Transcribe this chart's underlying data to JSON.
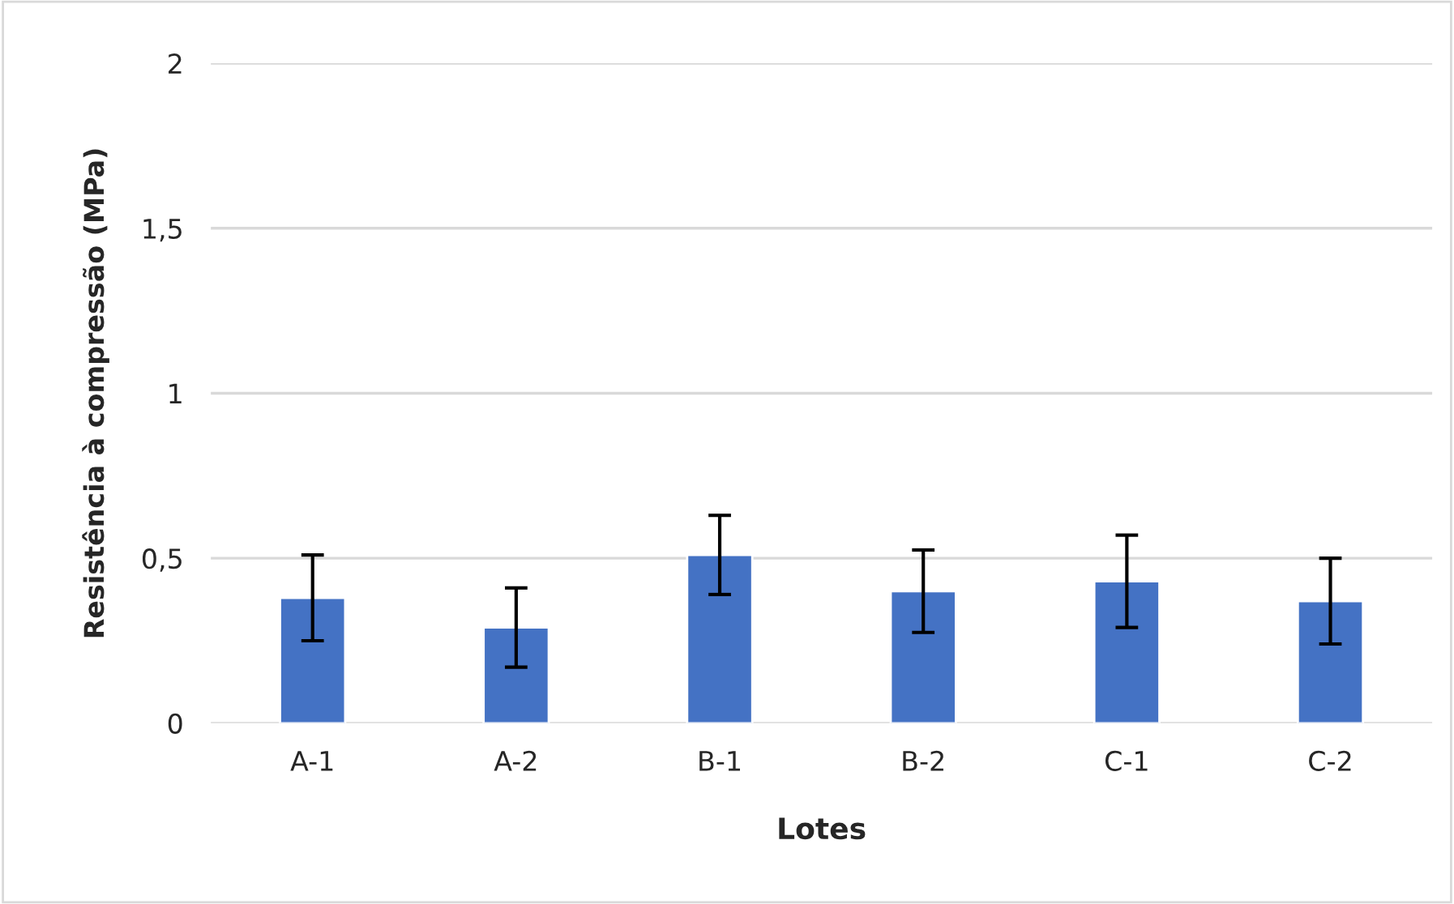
{
  "chart_data": {
    "type": "bar",
    "xlabel": "Lotes",
    "ylabel": "Resistência à compressão (MPa)",
    "categories": [
      "A-1",
      "A-2",
      "B-1",
      "B-2",
      "C-1",
      "C-2"
    ],
    "values": [
      0.38,
      0.29,
      0.51,
      0.4,
      0.43,
      0.37
    ],
    "errors": [
      0.13,
      0.12,
      0.12,
      0.125,
      0.14,
      0.13
    ],
    "color": "#4472c4",
    "ylim": [
      0,
      2
    ],
    "yticks": [
      {
        "value": 0,
        "label": "0"
      },
      {
        "value": 0.5,
        "label": "0,5"
      },
      {
        "value": 1,
        "label": "1"
      },
      {
        "value": 1.5,
        "label": "1,5"
      },
      {
        "value": 2,
        "label": "2"
      }
    ],
    "grid": "y",
    "legend": false
  }
}
